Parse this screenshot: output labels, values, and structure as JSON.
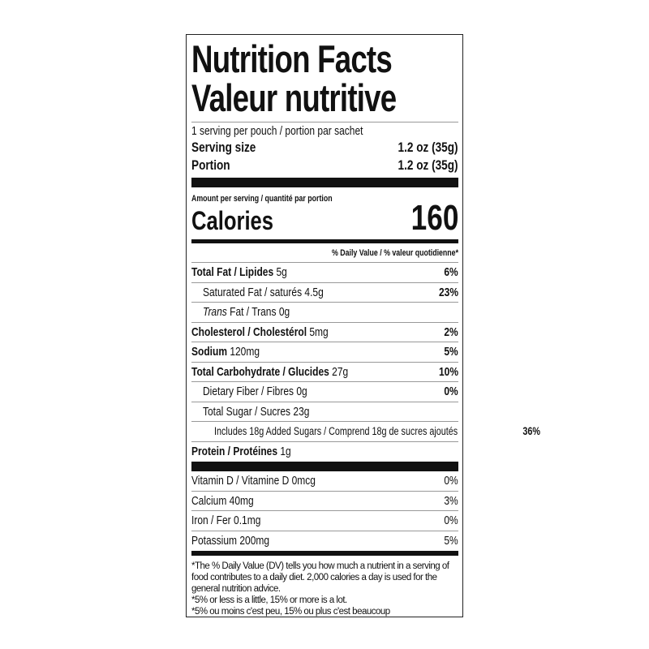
{
  "title_en": "Nutrition Facts",
  "title_fr": "Valeur nutritive",
  "servings": "1 serving per pouch / portion par sachet",
  "serving_size": {
    "label": "Serving size",
    "value": "1.2 oz (35g)"
  },
  "portion": {
    "label": "Portion",
    "value": "1.2 oz (35g)"
  },
  "amount_per": "Amount per serving / quantité par portion",
  "calories": {
    "label": "Calories",
    "value": "160"
  },
  "dv_header": "% Daily Value / % valeur quotidienne*",
  "nutrients": [
    {
      "name": "Total Fat / Lipides",
      "amount": "5g",
      "dv": "6%"
    },
    {
      "name": "Saturated Fat / saturés",
      "amount": "4.5g",
      "dv": "23%"
    },
    {
      "name_italic": "Trans",
      "name": "Fat / Trans",
      "amount": "0g",
      "dv": ""
    },
    {
      "name": "Cholesterol / Cholestérol",
      "amount": "5mg",
      "dv": "2%"
    },
    {
      "name": "Sodium",
      "amount": "120mg",
      "dv": "5%"
    },
    {
      "name": "Total Carbohydrate / Glucides",
      "amount": "27g",
      "dv": "10%"
    },
    {
      "name": "Dietary Fiber / Fibres",
      "amount": "0g",
      "dv": "0%"
    },
    {
      "name": "Total Sugar / Sucres",
      "amount": "23g",
      "dv": ""
    },
    {
      "name": "Includes 18g Added Sugars / Comprend 18g de sucres ajoutés",
      "amount": "",
      "dv": "36%"
    },
    {
      "name": "Protein / Protéines",
      "amount": "1g",
      "dv": ""
    }
  ],
  "vitamins": [
    {
      "name": "Vitamin D / Vitamine D 0mcg",
      "dv": "0%"
    },
    {
      "name": "Calcium 40mg",
      "dv": "3%"
    },
    {
      "name": "Iron / Fer 0.1mg",
      "dv": "0%"
    },
    {
      "name": "Potassium 200mg",
      "dv": "5%"
    }
  ],
  "footnotes": [
    "*The % Daily Value (DV) tells you how much a nutrient in a serving of food contributes to a daily diet. 2,000 calories a day is used for the general nutrition advice.",
    "*5% or less is a little, 15% or more is a lot.",
    "*5% ou moins c'est peu, 15% ou plus c'est beaucoup"
  ]
}
